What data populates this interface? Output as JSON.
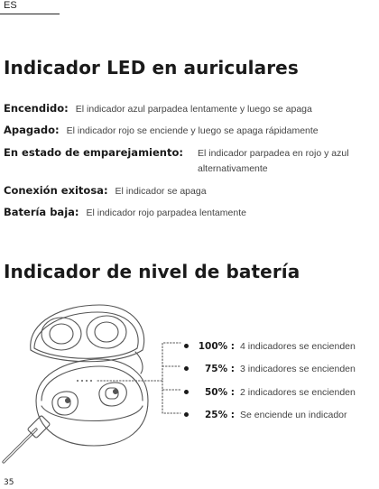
{
  "header": {
    "lang": "ES"
  },
  "led_section": {
    "title": "Indicador LED en auriculares",
    "rows": [
      {
        "label": "Encendido:",
        "text": "El indicador azul parpadea lentamente y luego se apaga"
      },
      {
        "label": "Apagado:",
        "text": "El indicador rojo se enciende y luego se apaga rápidamente"
      },
      {
        "label": "En estado de emparejamiento:",
        "text": "El indicador parpadea en rojo y azul alternativamente"
      },
      {
        "label": "Conexión exitosa:",
        "text": "El indicador se apaga"
      },
      {
        "label": "Batería baja:",
        "text": "El indicador rojo parpadea lentamente"
      }
    ]
  },
  "battery_section": {
    "title": "Indicador de nivel de batería",
    "levels": [
      {
        "percent": "100% :",
        "text": "4 indicadores se encienden"
      },
      {
        "percent": "75% :",
        "text": "3 indicadores se encienden"
      },
      {
        "percent": "50% :",
        "text": "2 indicadores se encienden"
      },
      {
        "percent": "25% :",
        "text": "Se enciende un indicador"
      }
    ]
  },
  "colors": {
    "text": "#1a1a1a",
    "body_text": "#444444",
    "line": "#555555"
  },
  "icons": [
    "earbuds-case-illustration"
  ],
  "footer": {
    "page_number": "35"
  }
}
